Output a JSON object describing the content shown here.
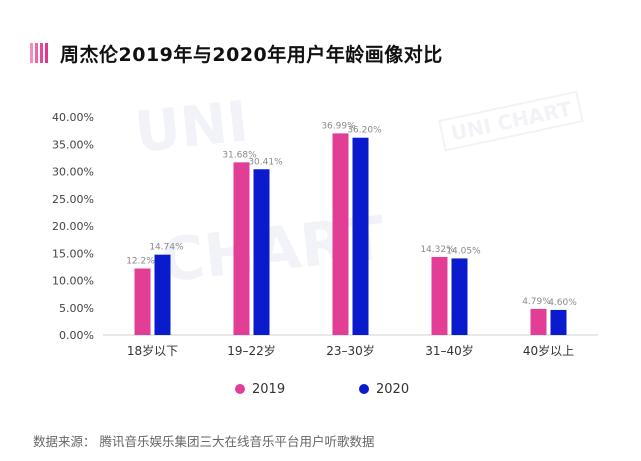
{
  "title": "周杰伦2019年与2020年用户年龄画像对比",
  "source": "数据来源：  腾讯音乐娱乐集团三大在线音乐平台用户听歌数据",
  "watermark": [
    "UNI",
    "CHART",
    "UNI CHART"
  ],
  "colors": {
    "accent": "#e5348d",
    "s2019": "#e23e96",
    "s2020": "#0a1acd"
  },
  "chart_data": {
    "type": "bar",
    "categories": [
      "18岁以下",
      "19–22岁",
      "23–30岁",
      "31–40岁",
      "40岁以上"
    ],
    "series": [
      {
        "name": "2019",
        "values": [
          12.2,
          31.68,
          36.99,
          14.32,
          4.79
        ],
        "labels": [
          "12.2%",
          "31.68%",
          "36.99%",
          "14.32%",
          "4.79%"
        ]
      },
      {
        "name": "2020",
        "values": [
          14.74,
          30.41,
          36.2,
          14.05,
          4.6
        ],
        "labels": [
          "14.74%",
          "30.41%",
          "36.20%",
          "14.05%",
          "4.60%"
        ]
      }
    ],
    "yticks": [
      "0.00%",
      "5.00%",
      "10.00%",
      "15.00%",
      "20.00%",
      "25.00%",
      "30.00%",
      "35.00%",
      "40.00%"
    ],
    "ylim": [
      0,
      40
    ],
    "legend": "bottom-center",
    "grid": false
  }
}
